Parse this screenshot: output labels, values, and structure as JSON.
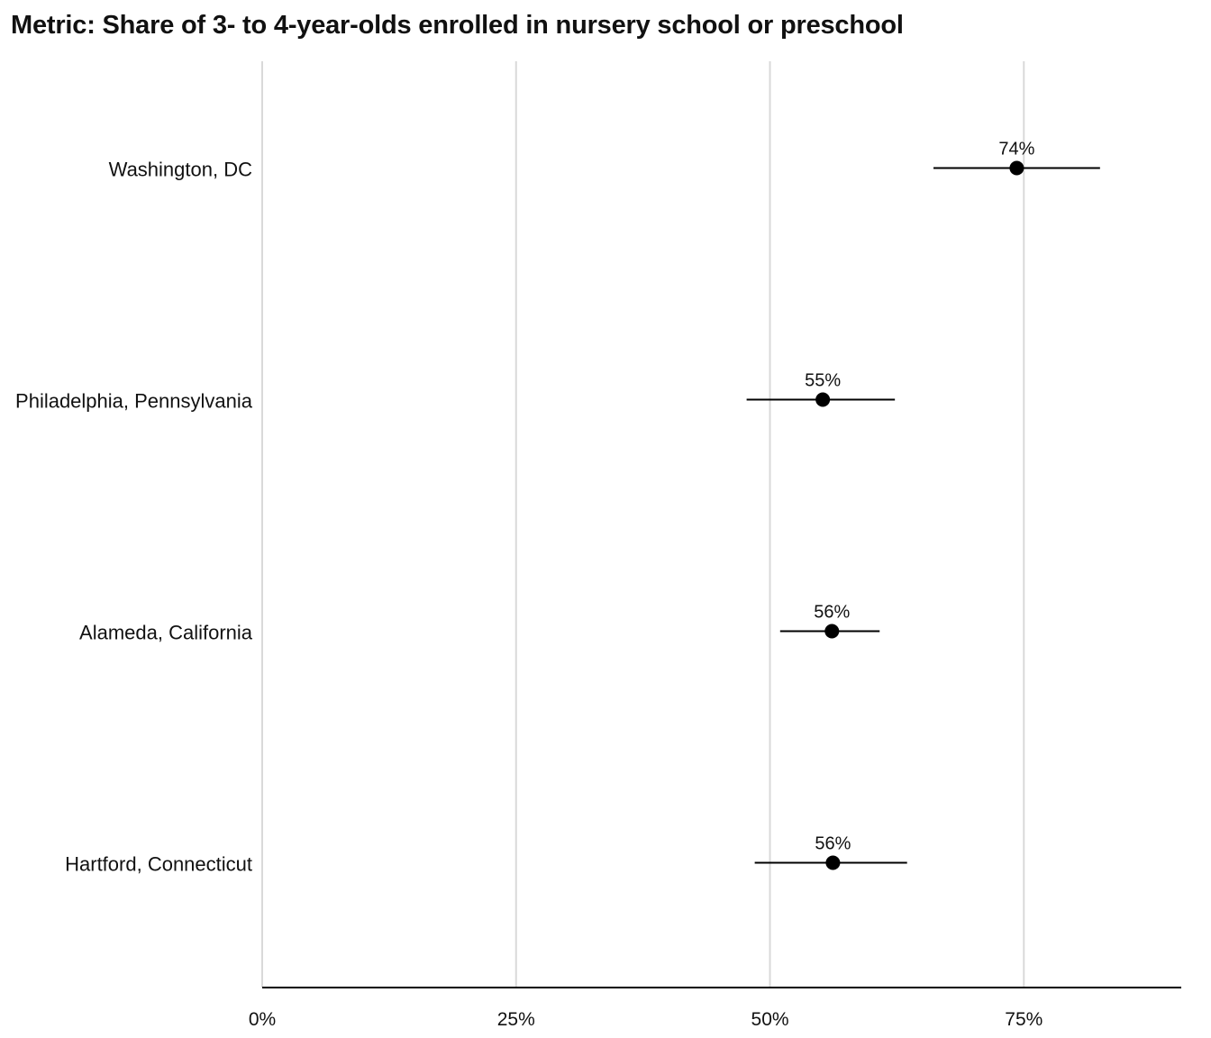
{
  "chart_data": {
    "type": "dot-with-error-bars",
    "title": "Metric: Share of 3- to 4-year-olds enrolled in nursery school or preschool",
    "xlabel": "",
    "ylabel": "",
    "xlim": [
      0,
      0.905
    ],
    "x_ticks": [
      {
        "value": 0,
        "label": "0%"
      },
      {
        "value": 0.25,
        "label": "25%"
      },
      {
        "value": 0.5,
        "label": "50%"
      },
      {
        "value": 0.75,
        "label": "75%"
      }
    ],
    "grid": "vertical",
    "point_color": "#000000",
    "grid_color": "#d9d9d9",
    "categories": [
      "Washington, DC",
      "Philadelphia, Pennsylvania",
      "Alameda, California",
      "Hartford, Connecticut"
    ],
    "points": [
      {
        "category": "Washington, DC",
        "value": 0.743,
        "low": 0.661,
        "high": 0.825,
        "label": "74%"
      },
      {
        "category": "Philadelphia, Pennsylvania",
        "value": 0.552,
        "low": 0.477,
        "high": 0.623,
        "label": "55%"
      },
      {
        "category": "Alameda, California",
        "value": 0.561,
        "low": 0.51,
        "high": 0.608,
        "label": "56%"
      },
      {
        "category": "Hartford, Connecticut",
        "value": 0.562,
        "low": 0.485,
        "high": 0.635,
        "label": "56%"
      }
    ]
  }
}
